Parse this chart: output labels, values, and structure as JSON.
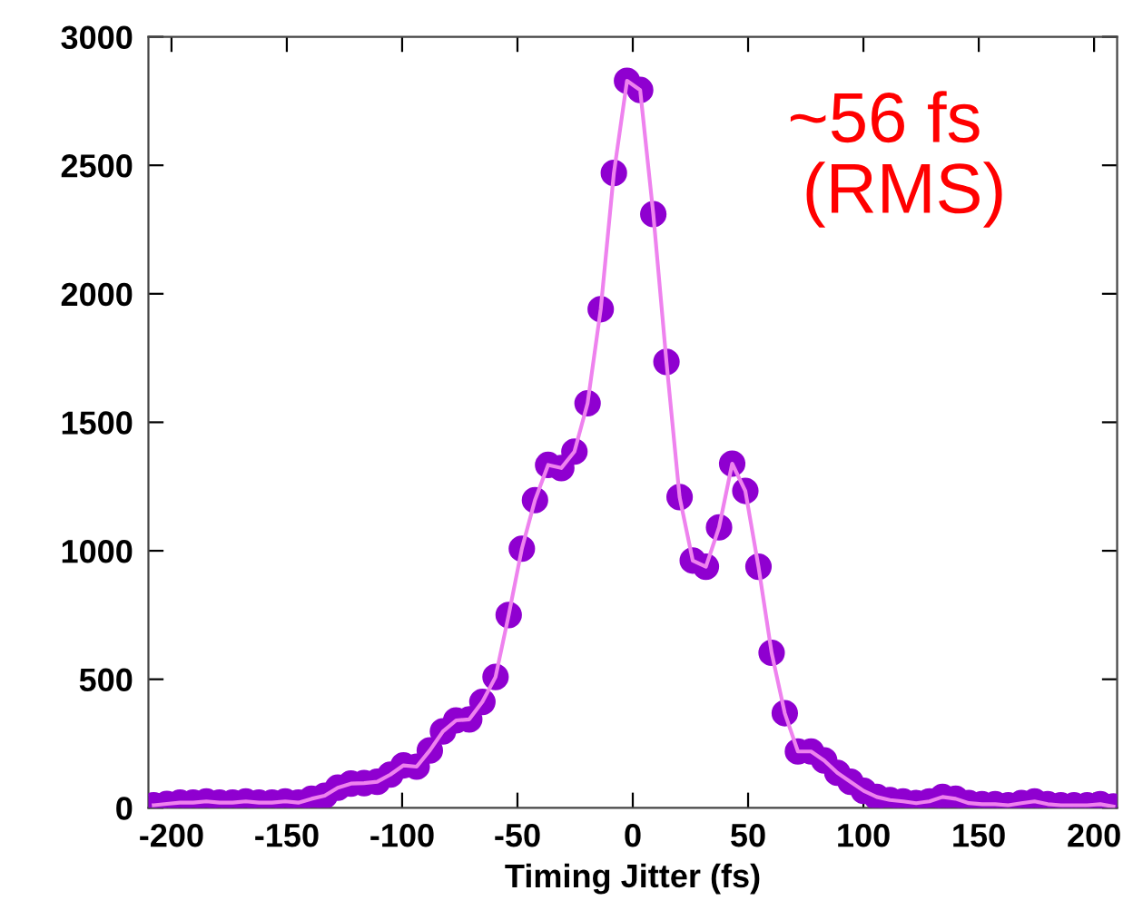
{
  "chart_data": {
    "type": "scatter",
    "xlabel": "Timing Jitter (fs)",
    "annotations": [
      "~56 fs\n  (RMS)"
    ],
    "x": [
      -207.7,
      -202,
      -196.3,
      -190.6,
      -184.9,
      -179.2,
      -173.5,
      -167.8,
      -162.1,
      -156.4,
      -150.7,
      -145,
      -139.3,
      -133.6,
      -127.9,
      -122.2,
      -116.5,
      -110.8,
      -105.1,
      -99.4,
      -93.7,
      -88,
      -82.3,
      -76.6,
      -70.9,
      -65.2,
      -59.5,
      -53.8,
      -48.1,
      -42.4,
      -36.7,
      -31,
      -25.3,
      -19.6,
      -13.9,
      -8.2,
      -2.5,
      3.2,
      8.9,
      14.6,
      20.3,
      26,
      31.7,
      37.4,
      43.1,
      48.8,
      54.5,
      60.2,
      65.9,
      71.6,
      77.3,
      83,
      88.7,
      94.4,
      100.1,
      105.8,
      111.5,
      117.2,
      122.9,
      128.6,
      134.3,
      140,
      145.7,
      151.4,
      157.1,
      162.8,
      168.5,
      174.2,
      179.9,
      185.6,
      191.3,
      197,
      202.7,
      208.4
    ],
    "series": [
      {
        "color": "#8f00d0",
        "marker": "circle",
        "values": [
          10,
          15,
          20,
          20,
          25,
          20,
          20,
          25,
          20,
          20,
          25,
          20,
          35,
          47,
          78,
          94,
          96,
          101,
          129,
          165,
          160,
          223,
          297,
          340,
          344,
          412,
          509,
          750,
          1008,
          1197,
          1334,
          1322,
          1386,
          1574,
          1940,
          2470,
          2829,
          2793,
          2310,
          1735,
          1209,
          962,
          938,
          1091,
          1339,
          1233,
          938,
          603,
          368,
          219,
          219,
          184,
          136,
          101,
          66,
          42,
          30,
          25,
          18,
          25,
          42,
          35,
          18,
          14,
          14,
          10,
          18,
          25,
          14,
          10,
          10,
          10,
          14,
          5
        ]
      },
      {
        "type": "line",
        "color": "#ee82ee",
        "marker": "none",
        "values": [
          10,
          15,
          20,
          20,
          25,
          20,
          20,
          25,
          20,
          20,
          25,
          20,
          35,
          47,
          78,
          94,
          96,
          101,
          129,
          165,
          160,
          223,
          297,
          340,
          344,
          412,
          509,
          750,
          1008,
          1197,
          1334,
          1322,
          1386,
          1574,
          1940,
          2470,
          2829,
          2793,
          2310,
          1735,
          1209,
          962,
          938,
          1091,
          1339,
          1233,
          938,
          603,
          368,
          219,
          219,
          184,
          136,
          101,
          66,
          42,
          30,
          25,
          18,
          25,
          42,
          35,
          18,
          14,
          14,
          10,
          18,
          25,
          14,
          10,
          10,
          10,
          14,
          5
        ]
      }
    ],
    "xlim": [
      -210,
      210
    ],
    "ylim": [
      0,
      3000
    ],
    "xticks": [
      -200,
      -150,
      -100,
      -50,
      0,
      50,
      100,
      150,
      200
    ],
    "yticks": [
      0,
      500,
      1000,
      1500,
      2000,
      2500,
      3000
    ],
    "grid": false,
    "legend": false,
    "line_style": "solid"
  }
}
